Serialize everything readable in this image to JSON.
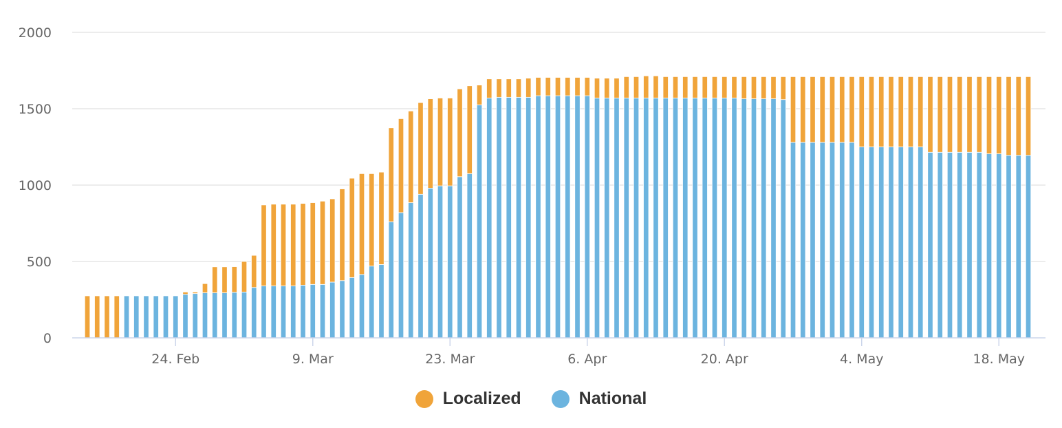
{
  "chart_data": {
    "type": "bar",
    "stacked": true,
    "x": [
      "2020-02-15",
      "2020-02-16",
      "2020-02-17",
      "2020-02-18",
      "2020-02-19",
      "2020-02-20",
      "2020-02-21",
      "2020-02-22",
      "2020-02-23",
      "2020-02-24",
      "2020-02-25",
      "2020-02-26",
      "2020-02-27",
      "2020-02-28",
      "2020-02-29",
      "2020-03-01",
      "2020-03-02",
      "2020-03-03",
      "2020-03-04",
      "2020-03-05",
      "2020-03-06",
      "2020-03-07",
      "2020-03-08",
      "2020-03-09",
      "2020-03-10",
      "2020-03-11",
      "2020-03-12",
      "2020-03-13",
      "2020-03-14",
      "2020-03-15",
      "2020-03-16",
      "2020-03-17",
      "2020-03-18",
      "2020-03-19",
      "2020-03-20",
      "2020-03-21",
      "2020-03-22",
      "2020-03-23",
      "2020-03-24",
      "2020-03-25",
      "2020-03-26",
      "2020-03-27",
      "2020-03-28",
      "2020-03-29",
      "2020-03-30",
      "2020-03-31",
      "2020-04-01",
      "2020-04-02",
      "2020-04-03",
      "2020-04-04",
      "2020-04-05",
      "2020-04-06",
      "2020-04-07",
      "2020-04-08",
      "2020-04-09",
      "2020-04-10",
      "2020-04-11",
      "2020-04-12",
      "2020-04-13",
      "2020-04-14",
      "2020-04-15",
      "2020-04-16",
      "2020-04-17",
      "2020-04-18",
      "2020-04-19",
      "2020-04-20",
      "2020-04-21",
      "2020-04-22",
      "2020-04-23",
      "2020-04-24",
      "2020-04-25",
      "2020-04-26",
      "2020-04-27",
      "2020-04-28",
      "2020-04-29",
      "2020-04-30",
      "2020-05-01",
      "2020-05-02",
      "2020-05-03",
      "2020-05-04",
      "2020-05-05",
      "2020-05-06",
      "2020-05-07",
      "2020-05-08",
      "2020-05-09",
      "2020-05-10",
      "2020-05-11",
      "2020-05-12",
      "2020-05-13",
      "2020-05-14",
      "2020-05-15",
      "2020-05-16",
      "2020-05-17",
      "2020-05-18",
      "2020-05-19",
      "2020-05-20",
      "2020-05-21"
    ],
    "series": [
      {
        "name": "National",
        "color": "#6cb4df",
        "values": [
          0,
          0,
          0,
          0,
          275,
          275,
          275,
          275,
          275,
          275,
          285,
          290,
          295,
          295,
          295,
          298,
          300,
          330,
          340,
          340,
          340,
          340,
          345,
          350,
          350,
          365,
          375,
          395,
          415,
          470,
          480,
          760,
          820,
          885,
          940,
          980,
          995,
          995,
          1055,
          1075,
          1525,
          1570,
          1575,
          1575,
          1575,
          1575,
          1585,
          1585,
          1585,
          1585,
          1585,
          1585,
          1570,
          1570,
          1570,
          1570,
          1570,
          1570,
          1570,
          1570,
          1570,
          1570,
          1570,
          1570,
          1570,
          1570,
          1570,
          1565,
          1565,
          1565,
          1565,
          1560,
          1280,
          1280,
          1280,
          1280,
          1280,
          1280,
          1280,
          1250,
          1250,
          1250,
          1250,
          1250,
          1250,
          1250,
          1215,
          1215,
          1215,
          1215,
          1215,
          1215,
          1205,
          1205,
          1195,
          1195,
          1195
        ]
      },
      {
        "name": "Localized",
        "color": "#f0a43a",
        "values": [
          275,
          275,
          275,
          275,
          0,
          0,
          0,
          0,
          0,
          0,
          15,
          10,
          60,
          170,
          170,
          168,
          200,
          210,
          530,
          535,
          535,
          535,
          535,
          535,
          545,
          545,
          600,
          650,
          660,
          605,
          605,
          615,
          615,
          600,
          600,
          585,
          575,
          575,
          575,
          575,
          130,
          125,
          120,
          120,
          120,
          125,
          120,
          120,
          120,
          120,
          120,
          120,
          130,
          130,
          130,
          140,
          140,
          145,
          145,
          140,
          140,
          140,
          140,
          140,
          140,
          140,
          140,
          145,
          145,
          145,
          145,
          150,
          430,
          430,
          430,
          430,
          430,
          430,
          430,
          460,
          460,
          460,
          460,
          460,
          460,
          460,
          495,
          495,
          495,
          495,
          495,
          495,
          505,
          505,
          515,
          515,
          515
        ]
      }
    ],
    "x_tick_labels": [
      "24. Feb",
      "9. Mar",
      "23. Mar",
      "6. Apr",
      "20. Apr",
      "4. May",
      "18. May"
    ],
    "x_tick_dates": [
      "2020-02-24",
      "2020-03-09",
      "2020-03-23",
      "2020-04-06",
      "2020-04-20",
      "2020-05-04",
      "2020-05-18"
    ],
    "y_ticks": [
      0,
      500,
      1000,
      1500,
      2000
    ],
    "ylim": [
      0,
      2000
    ],
    "title": "",
    "xlabel": "",
    "ylabel": "",
    "grid": true,
    "legend_position": "bottom-center",
    "legend": [
      {
        "name": "Localized",
        "color": "#f0a43a"
      },
      {
        "name": "National",
        "color": "#6cb4df"
      }
    ]
  }
}
